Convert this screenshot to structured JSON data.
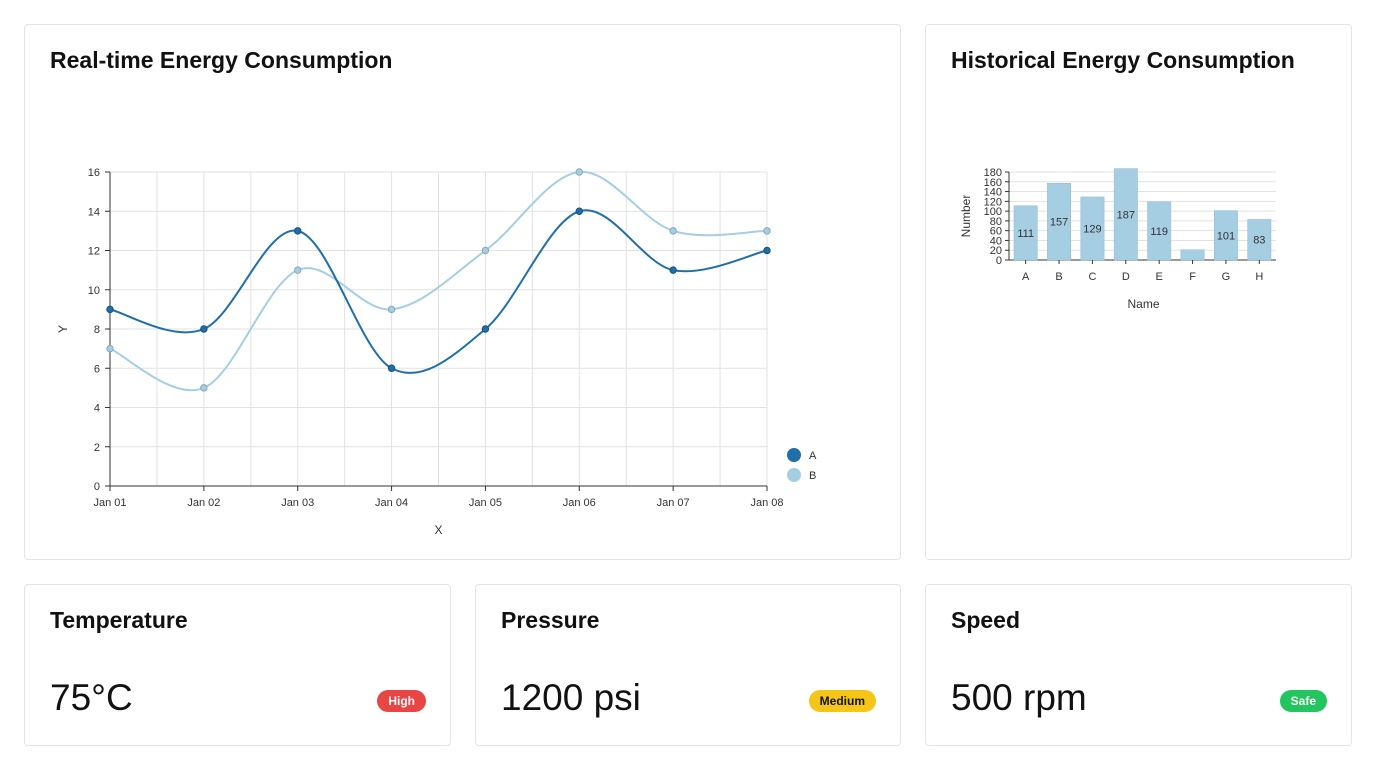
{
  "realtime": {
    "title": "Real-time Energy Consumption",
    "chart_data": {
      "type": "line",
      "xlabel": "X",
      "ylabel": "Y",
      "x": [
        "Jan 01",
        "Jan 02",
        "Jan 03",
        "Jan 04",
        "Jan 05",
        "Jan 06",
        "Jan 07",
        "Jan 08"
      ],
      "ylim": [
        0,
        16
      ],
      "yticks": [
        0,
        2,
        4,
        6,
        8,
        10,
        12,
        14,
        16
      ],
      "grid": true,
      "legend_position": "bottom-right",
      "series": [
        {
          "name": "A",
          "values": [
            9,
            8,
            13,
            6,
            8,
            14,
            11,
            12
          ],
          "color": "#1f6fa8"
        },
        {
          "name": "B",
          "values": [
            7,
            5,
            11,
            9,
            12,
            16,
            13,
            13
          ],
          "color": "#a6cee3"
        }
      ]
    }
  },
  "historical": {
    "title": "Historical Energy Consumption",
    "chart_data": {
      "type": "bar",
      "xlabel": "Name",
      "ylabel": "Number",
      "categories": [
        "A",
        "B",
        "C",
        "D",
        "E",
        "F",
        "G",
        "H"
      ],
      "values": [
        111,
        157,
        129,
        187,
        119,
        21,
        101,
        83
      ],
      "data_labels": [
        "111",
        "157",
        "129",
        "187",
        "119",
        "",
        "101",
        "83"
      ],
      "ylim": [
        0,
        180
      ],
      "yticks": [
        0,
        20,
        40,
        60,
        80,
        100,
        120,
        140,
        160,
        180
      ],
      "grid": true,
      "color": "#a6cee3"
    }
  },
  "metrics": {
    "temperature": {
      "title": "Temperature",
      "value": "75°C",
      "badge": "High",
      "badge_color": "#e84545"
    },
    "pressure": {
      "title": "Pressure",
      "value": "1200 psi",
      "badge": "Medium",
      "badge_color": "#f5c518"
    },
    "speed": {
      "title": "Speed",
      "value": "500 rpm",
      "badge": "Safe",
      "badge_color": "#22c55e"
    }
  }
}
